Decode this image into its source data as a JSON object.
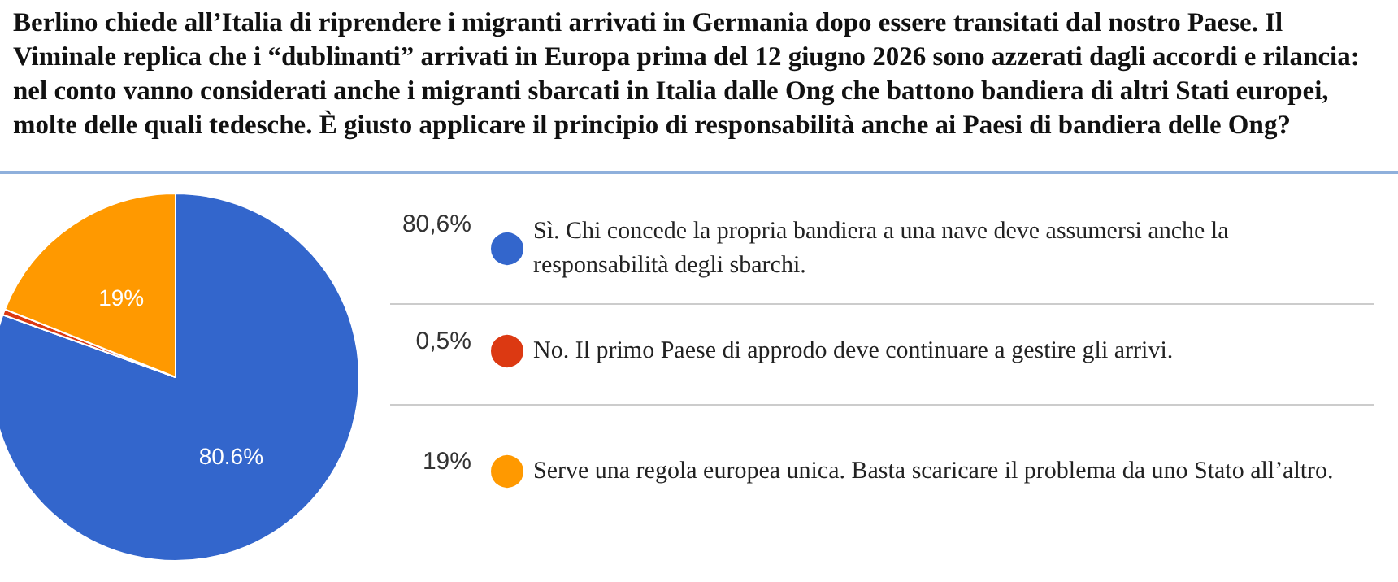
{
  "chart_data": {
    "type": "pie",
    "title": "Berlino chiede all’Italia di riprendere i migranti arrivati in Germania dopo essere transitati dal nostro Paese. Il Viminale replica che i “dublinanti” arrivati in Europa prima del 12 giugno 2026 sono azzerati dagli accordi e rilancia: nel conto vanno considerati anche i migranti sbarcati in Italia dalle Ong che battono bandiera di altri Stati europei, molte delle quali tedesche. È giusto applicare il principio di responsabilità anche ai Paesi di bandiera delle Ong?",
    "categories": [
      "Sì. Chi concede la propria bandiera a una nave deve assumersi anche la responsabilità degli sbarchi.",
      "No. Il primo Paese di approdo deve continuare a gestire gli arrivi.",
      "Serve una regola europea unica. Basta scaricare il problema da uno Stato all’altro."
    ],
    "values": [
      80.6,
      0.5,
      19
    ],
    "colors": [
      "#3366cc",
      "#dc3912",
      "#ff9900"
    ],
    "value_labels": [
      "80.6%",
      null,
      "19%"
    ],
    "annotations": [
      "80,6%",
      "0,5%",
      "19%"
    ],
    "legend": "right"
  }
}
